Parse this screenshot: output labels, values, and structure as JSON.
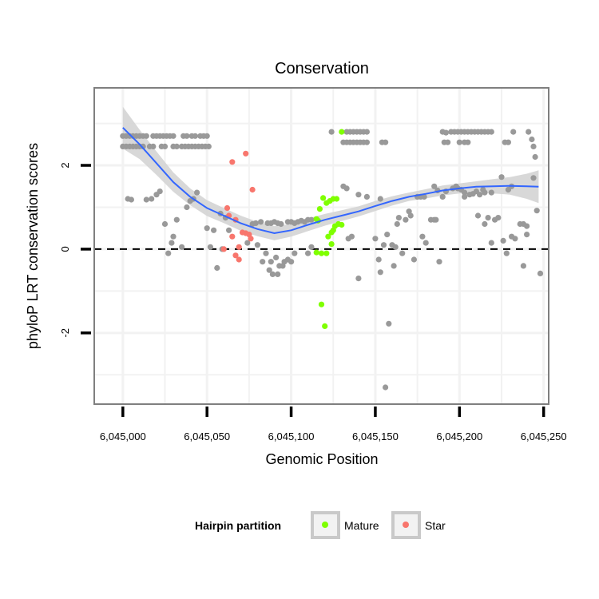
{
  "chart_data": {
    "type": "scatter",
    "title": "Conservation",
    "xlabel": "Genomic Position",
    "ylabel": "phyloP LRT conservation scores",
    "xlim": [
      6044983,
      6045253
    ],
    "ylim": [
      -3.7,
      3.85
    ],
    "x_ticks": [
      6045000,
      6045050,
      6045100,
      6045150,
      6045200,
      6045250
    ],
    "x_tick_labels": [
      "6,045,000",
      "6,045,050",
      "6,045,100",
      "6,045,150",
      "6,045,200",
      "6,045,250"
    ],
    "y_ticks": [
      -2,
      0,
      2
    ],
    "y_tick_labels": [
      "-2",
      "0",
      "2"
    ],
    "y_minor_gridlines": [
      -3,
      -1,
      1,
      3
    ],
    "x_minor_gridlines": [
      6045025,
      6045075,
      6045125,
      6045175,
      6045225
    ],
    "reference_line": {
      "y": 0,
      "style": "dashed"
    },
    "legend": {
      "title": "Hairpin partition",
      "position": "bottom",
      "entries": [
        {
          "label": "Mature",
          "color": "#7FFF00"
        },
        {
          "label": "Star",
          "color": "#F8766D"
        }
      ]
    },
    "colors": {
      "other": "#999999",
      "Mature": "#7FFF00",
      "Star": "#F8766D",
      "smooth": "#3366FF",
      "band": "#d4d4d4",
      "panel": "#ffffff",
      "grid": "#f2f2f2",
      "frame": "#7f7f7f"
    },
    "smooth": {
      "x": [
        6045000,
        6045010,
        6045020,
        6045030,
        6045040,
        6045050,
        6045060,
        6045070,
        6045080,
        6045090,
        6045100,
        6045110,
        6045120,
        6045130,
        6045140,
        6045150,
        6045160,
        6045170,
        6045180,
        6045190,
        6045200,
        6045210,
        6045220,
        6045230,
        6045240,
        6045247
      ],
      "y": [
        2.9,
        2.5,
        2.05,
        1.6,
        1.25,
        0.98,
        0.8,
        0.62,
        0.48,
        0.38,
        0.45,
        0.58,
        0.7,
        0.8,
        0.9,
        1.03,
        1.15,
        1.25,
        1.32,
        1.4,
        1.45,
        1.49,
        1.5,
        1.51,
        1.5,
        1.49
      ],
      "upper": [
        3.4,
        2.85,
        2.33,
        1.83,
        1.45,
        1.17,
        0.98,
        0.8,
        0.65,
        0.55,
        0.6,
        0.73,
        0.84,
        0.93,
        1.02,
        1.15,
        1.26,
        1.35,
        1.43,
        1.52,
        1.57,
        1.62,
        1.67,
        1.72,
        1.8,
        1.88
      ],
      "lower": [
        2.4,
        2.15,
        1.77,
        1.37,
        1.05,
        0.79,
        0.62,
        0.44,
        0.31,
        0.21,
        0.3,
        0.43,
        0.56,
        0.67,
        0.78,
        0.91,
        1.04,
        1.15,
        1.21,
        1.28,
        1.33,
        1.36,
        1.33,
        1.3,
        1.2,
        1.1
      ]
    },
    "series": [
      {
        "name": "Other",
        "points": [
          [
            6045000,
            2.7
          ],
          [
            6045002,
            2.7
          ],
          [
            6045004,
            2.7
          ],
          [
            6045006,
            2.7
          ],
          [
            6045008,
            2.7
          ],
          [
            6045010,
            2.7
          ],
          [
            6045012,
            2.7
          ],
          [
            6045014,
            2.7
          ],
          [
            6045000,
            2.45
          ],
          [
            6045002,
            2.45
          ],
          [
            6045004,
            2.45
          ],
          [
            6045006,
            2.45
          ],
          [
            6045008,
            2.45
          ],
          [
            6045010,
            2.45
          ],
          [
            6045012,
            2.45
          ],
          [
            6045003,
            1.2
          ],
          [
            6045005,
            1.18
          ],
          [
            6045018,
            2.7
          ],
          [
            6045020,
            2.7
          ],
          [
            6045022,
            2.7
          ],
          [
            6045024,
            2.7
          ],
          [
            6045026,
            2.7
          ],
          [
            6045028,
            2.7
          ],
          [
            6045030,
            2.7
          ],
          [
            6045016,
            2.45
          ],
          [
            6045018,
            2.45
          ],
          [
            6045023,
            2.45
          ],
          [
            6045025,
            2.45
          ],
          [
            6045030,
            2.45
          ],
          [
            6045032,
            2.45
          ],
          [
            6045035,
            2.45
          ],
          [
            6045037,
            2.45
          ],
          [
            6045014,
            1.18
          ],
          [
            6045017,
            1.2
          ],
          [
            6045020,
            1.3
          ],
          [
            6045022,
            1.38
          ],
          [
            6045036,
            2.7
          ],
          [
            6045038,
            2.7
          ],
          [
            6045041,
            2.7
          ],
          [
            6045043,
            2.7
          ],
          [
            6045046,
            2.7
          ],
          [
            6045048,
            2.7
          ],
          [
            6045050,
            2.7
          ],
          [
            6045039,
            2.45
          ],
          [
            6045041,
            2.45
          ],
          [
            6045043,
            2.45
          ],
          [
            6045045,
            2.45
          ],
          [
            6045047,
            2.45
          ],
          [
            6045049,
            2.45
          ],
          [
            6045051,
            2.45
          ],
          [
            6045040,
            1.15
          ],
          [
            6045042,
            1.2
          ],
          [
            6045044,
            1.35
          ],
          [
            6045038,
            1.0
          ],
          [
            6045025,
            0.6
          ],
          [
            6045027,
            -0.1
          ],
          [
            6045029,
            0.15
          ],
          [
            6045030,
            0.3
          ],
          [
            6045032,
            0.7
          ],
          [
            6045035,
            0.05
          ],
          [
            6045050,
            0.5
          ],
          [
            6045052,
            0.05
          ],
          [
            6045054,
            0.45
          ],
          [
            6045056,
            -0.45
          ],
          [
            6045058,
            0.85
          ],
          [
            6045061,
            0.75
          ],
          [
            6045063,
            0.45
          ],
          [
            6045059,
            0.0
          ],
          [
            6045074,
            0.15
          ],
          [
            6045077,
            0.6
          ],
          [
            6045079,
            0.62
          ],
          [
            6045082,
            0.65
          ],
          [
            6045080,
            0.1
          ],
          [
            6045083,
            -0.3
          ],
          [
            6045085,
            -0.1
          ],
          [
            6045087,
            -0.5
          ],
          [
            6045088,
            -0.3
          ],
          [
            6045089,
            -0.6
          ],
          [
            6045091,
            -0.2
          ],
          [
            6045092,
            -0.6
          ],
          [
            6045093,
            -0.4
          ],
          [
            6045086,
            0.62
          ],
          [
            6045088,
            0.62
          ],
          [
            6045090,
            0.65
          ],
          [
            6045092,
            0.62
          ],
          [
            6045094,
            0.6
          ],
          [
            6045096,
            -0.3
          ],
          [
            6045098,
            -0.25
          ],
          [
            6045100,
            -0.3
          ],
          [
            6045102,
            -0.1
          ],
          [
            6045095,
            -0.4
          ],
          [
            6045098,
            0.65
          ],
          [
            6045100,
            0.65
          ],
          [
            6045102,
            0.62
          ],
          [
            6045104,
            0.65
          ],
          [
            6045106,
            0.68
          ],
          [
            6045108,
            0.65
          ],
          [
            6045110,
            0.7
          ],
          [
            6045112,
            0.7
          ],
          [
            6045110,
            -0.1
          ],
          [
            6045112,
            0.05
          ],
          [
            6045124,
            2.8
          ],
          [
            6045133,
            2.8
          ],
          [
            6045135,
            2.8
          ],
          [
            6045137,
            2.8
          ],
          [
            6045139,
            2.8
          ],
          [
            6045141,
            2.8
          ],
          [
            6045143,
            2.8
          ],
          [
            6045145,
            2.8
          ],
          [
            6045131,
            2.55
          ],
          [
            6045133,
            2.55
          ],
          [
            6045135,
            2.55
          ],
          [
            6045137,
            2.55
          ],
          [
            6045139,
            2.55
          ],
          [
            6045141,
            2.55
          ],
          [
            6045143,
            2.55
          ],
          [
            6045145,
            2.55
          ],
          [
            6045131,
            1.5
          ],
          [
            6045133,
            1.45
          ],
          [
            6045140,
            1.3
          ],
          [
            6045145,
            1.25
          ],
          [
            6045134,
            0.25
          ],
          [
            6045136,
            0.3
          ],
          [
            6045140,
            -0.7
          ],
          [
            6045150,
            0.25
          ],
          [
            6045152,
            -0.25
          ],
          [
            6045153,
            -0.55
          ],
          [
            6045155,
            0.1
          ],
          [
            6045157,
            0.35
          ],
          [
            6045158,
            -1.78
          ],
          [
            6045156,
            -3.3
          ],
          [
            6045160,
            0.1
          ],
          [
            6045161,
            -0.4
          ],
          [
            6045162,
            0.05
          ],
          [
            6045163,
            0.6
          ],
          [
            6045164,
            0.75
          ],
          [
            6045166,
            -0.1
          ],
          [
            6045168,
            0.7
          ],
          [
            6045170,
            0.9
          ],
          [
            6045154,
            2.55
          ],
          [
            6045156,
            2.55
          ],
          [
            6045153,
            1.2
          ],
          [
            6045171,
            0.8
          ],
          [
            6045173,
            -0.25
          ],
          [
            6045175,
            1.25
          ],
          [
            6045177,
            1.25
          ],
          [
            6045179,
            1.25
          ],
          [
            6045178,
            0.3
          ],
          [
            6045180,
            0.15
          ],
          [
            6045183,
            0.7
          ],
          [
            6045185,
            0.7
          ],
          [
            6045186,
            0.7
          ],
          [
            6045188,
            -0.3
          ],
          [
            6045185,
            1.5
          ],
          [
            6045187,
            1.4
          ],
          [
            6045190,
            2.8
          ],
          [
            6045192,
            2.78
          ],
          [
            6045195,
            2.8
          ],
          [
            6045197,
            2.8
          ],
          [
            6045199,
            2.8
          ],
          [
            6045201,
            2.8
          ],
          [
            6045203,
            2.8
          ],
          [
            6045205,
            2.8
          ],
          [
            6045207,
            2.8
          ],
          [
            6045209,
            2.8
          ],
          [
            6045211,
            2.8
          ],
          [
            6045213,
            2.8
          ],
          [
            6045215,
            2.8
          ],
          [
            6045217,
            2.8
          ],
          [
            6045219,
            2.8
          ],
          [
            6045191,
            2.55
          ],
          [
            6045193,
            2.55
          ],
          [
            6045200,
            2.55
          ],
          [
            6045203,
            2.55
          ],
          [
            6045205,
            2.55
          ],
          [
            6045190,
            1.25
          ],
          [
            6045192,
            1.38
          ],
          [
            6045196,
            1.45
          ],
          [
            6045198,
            1.5
          ],
          [
            6045201,
            1.42
          ],
          [
            6045203,
            1.35
          ],
          [
            6045206,
            1.3
          ],
          [
            6045208,
            1.32
          ],
          [
            6045212,
            1.3
          ],
          [
            6045215,
            1.35
          ],
          [
            6045219,
            1.35
          ],
          [
            6045199,
            1.45
          ],
          [
            6045203,
            1.25
          ],
          [
            6045210,
            1.38
          ],
          [
            6045214,
            1.42
          ],
          [
            6045211,
            0.8
          ],
          [
            6045215,
            0.6
          ],
          [
            6045217,
            0.75
          ],
          [
            6045219,
            0.15
          ],
          [
            6045221,
            0.7
          ],
          [
            6045223,
            0.75
          ],
          [
            6045225,
            1.72
          ],
          [
            6045229,
            1.42
          ],
          [
            6045231,
            1.5
          ],
          [
            6045227,
            2.55
          ],
          [
            6045229,
            2.55
          ],
          [
            6045232,
            2.8
          ],
          [
            6045226,
            0.2
          ],
          [
            6045228,
            -0.1
          ],
          [
            6045231,
            0.3
          ],
          [
            6045233,
            0.25
          ],
          [
            6045236,
            0.6
          ],
          [
            6045238,
            0.6
          ],
          [
            6045240,
            0.55
          ],
          [
            6045240,
            0.35
          ],
          [
            6045238,
            -0.4
          ],
          [
            6045241,
            2.8
          ],
          [
            6045243,
            2.62
          ],
          [
            6045244,
            2.45
          ],
          [
            6045245,
            2.2
          ],
          [
            6045246,
            0.92
          ],
          [
            6045248,
            -0.58
          ],
          [
            6045244,
            1.7
          ]
        ]
      },
      {
        "name": "Star",
        "points": [
          [
            6045065,
            2.08
          ],
          [
            6045073,
            2.28
          ],
          [
            6045077,
            1.42
          ],
          [
            6045062,
            0.98
          ],
          [
            6045063,
            0.8
          ],
          [
            6045065,
            0.3
          ],
          [
            6045067,
            -0.15
          ],
          [
            6045069,
            -0.25
          ],
          [
            6045069,
            0.05
          ],
          [
            6045071,
            0.4
          ],
          [
            6045073,
            0.38
          ],
          [
            6045075,
            0.35
          ],
          [
            6045076,
            0.25
          ],
          [
            6045067,
            0.7
          ],
          [
            6045060,
            0.0
          ]
        ]
      },
      {
        "name": "Mature",
        "points": [
          [
            6045130,
            2.8
          ],
          [
            6045115,
            0.72
          ],
          [
            6045116,
            0.68
          ],
          [
            6045117,
            0.96
          ],
          [
            6045119,
            1.22
          ],
          [
            6045121,
            1.1
          ],
          [
            6045123,
            1.15
          ],
          [
            6045125,
            1.2
          ],
          [
            6045127,
            1.2
          ],
          [
            6045124,
            0.4
          ],
          [
            6045125,
            0.45
          ],
          [
            6045126,
            0.55
          ],
          [
            6045128,
            0.6
          ],
          [
            6045130,
            0.58
          ],
          [
            6045122,
            0.3
          ],
          [
            6045124,
            0.12
          ],
          [
            6045115,
            -0.08
          ],
          [
            6045118,
            -0.1
          ],
          [
            6045121,
            -0.1
          ],
          [
            6045118,
            -1.32
          ],
          [
            6045120,
            -1.84
          ]
        ]
      }
    ]
  }
}
